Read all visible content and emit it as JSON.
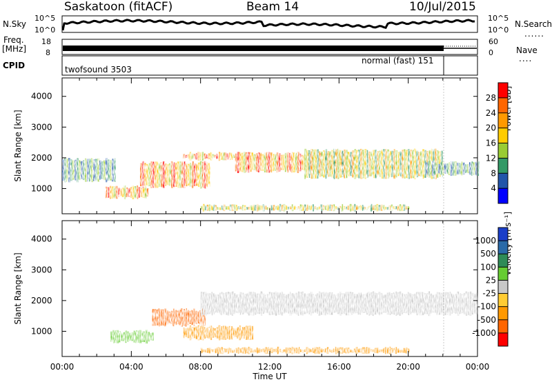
{
  "header": {
    "station": "Saskatoon (fitACF)",
    "beam": "Beam 14",
    "date": "10/Jul/2015"
  },
  "top_panels": {
    "nsky_label": "N.Sky",
    "nsky_ticks": [
      "10^5",
      "10^0"
    ],
    "nsearch_label": "N.Search",
    "freq_label_1": "Freq.",
    "freq_label_2": "[MHz]",
    "freq_ticks_left": [
      "18",
      "8"
    ],
    "freq_ticks_right": [
      "60",
      "0"
    ],
    "nave_label": "Nave",
    "cpid_label": "CPID",
    "cpid_1": "twofsound 3503",
    "cpid_2": "normal (fast) 151"
  },
  "power_scale": {
    "label": "Power [dB]",
    "ticks": [
      "28",
      "24",
      "20",
      "16",
      "12",
      "8",
      "4"
    ],
    "colors": [
      "#ff0000",
      "#ff6600",
      "#ff9900",
      "#ffcc00",
      "#99cc33",
      "#339966",
      "#2255aa",
      "#0000ff"
    ]
  },
  "velocity_scale": {
    "label": "Velocity [m s⁻¹]",
    "ticks": [
      "1000",
      "500",
      "100",
      "25",
      "-25",
      "-100",
      "-500",
      "-1000"
    ],
    "colors": [
      "#1a3ec8",
      "#2a6aa8",
      "#2e8b57",
      "#66cc33",
      "#c8c8c8",
      "#ffcc33",
      "#ff9900",
      "#ff6600",
      "#ff0000"
    ]
  },
  "chart_data": [
    {
      "type": "heatmap",
      "name": "power",
      "xlabel": "Time UT",
      "ylabel": "Slant Range [km]",
      "xlim": [
        0,
        24
      ],
      "ylim": [
        180,
        4600
      ],
      "x_ticklabels": [
        "00:00",
        "04:00",
        "08:00",
        "12:00",
        "16:00",
        "20:00",
        "00:00"
      ],
      "y_ticklabels": [
        "1000",
        "2000",
        "3000",
        "4000"
      ],
      "y_tickvalues": [
        1000,
        2000,
        3000,
        4000
      ],
      "colorbar_label": "Power [dB]",
      "regions": [
        {
          "t": [
            0,
            3
          ],
          "range": [
            1200,
            2000
          ],
          "level": "weak"
        },
        {
          "t": [
            2.5,
            5
          ],
          "range": [
            650,
            1100
          ],
          "level": "strong"
        },
        {
          "t": [
            4.5,
            8.5
          ],
          "range": [
            1000,
            1900
          ],
          "level": "strong"
        },
        {
          "t": [
            7,
            12
          ],
          "range": [
            1900,
            2200
          ],
          "level": "strong"
        },
        {
          "t": [
            10,
            17
          ],
          "range": [
            1500,
            2200
          ],
          "level": "strong"
        },
        {
          "t": [
            14,
            22
          ],
          "range": [
            1300,
            2300
          ],
          "level": "medium"
        },
        {
          "t": [
            21,
            24
          ],
          "range": [
            1400,
            1900
          ],
          "level": "weak"
        },
        {
          "t": [
            8,
            20
          ],
          "range": [
            250,
            500
          ],
          "level": "medium"
        }
      ]
    },
    {
      "type": "heatmap",
      "name": "velocity",
      "xlabel": "Time UT",
      "ylabel": "Slant Range [km]",
      "xlim": [
        0,
        24
      ],
      "ylim": [
        180,
        4600
      ],
      "x_ticklabels": [
        "00:00",
        "04:00",
        "08:00",
        "12:00",
        "16:00",
        "20:00",
        "00:00"
      ],
      "y_ticklabels": [
        "1000",
        "2000",
        "3000",
        "4000"
      ],
      "y_tickvalues": [
        1000,
        2000,
        3000,
        4000
      ],
      "colorbar_label": "Velocity [m s⁻¹]",
      "regions": [
        {
          "t": [
            2.8,
            5.2
          ],
          "range": [
            600,
            1050
          ],
          "velocity": 100
        },
        {
          "t": [
            5.2,
            8.2
          ],
          "range": [
            1150,
            1750
          ],
          "velocity": -500
        },
        {
          "t": [
            8,
            24
          ],
          "range": [
            1500,
            2300
          ],
          "velocity": 0
        },
        {
          "t": [
            7,
            11
          ],
          "range": [
            700,
            1200
          ],
          "velocity": -100
        },
        {
          "t": [
            8,
            20
          ],
          "range": [
            250,
            500
          ],
          "velocity": -100
        }
      ]
    }
  ]
}
